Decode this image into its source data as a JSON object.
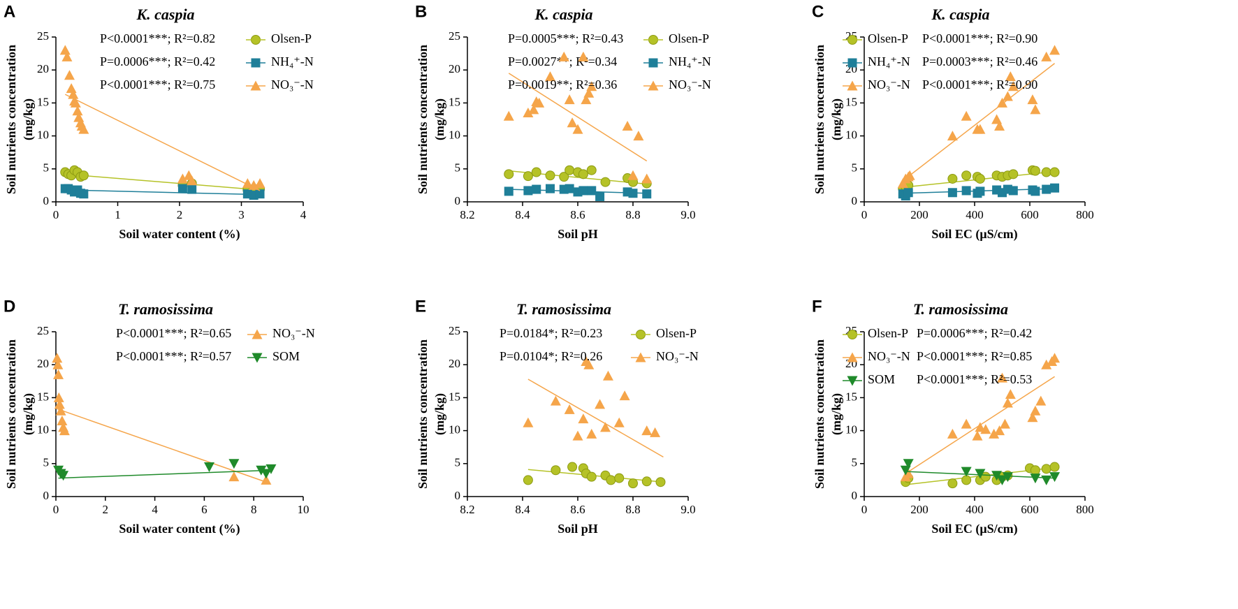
{
  "chart_data": [
    {
      "type": "scatter",
      "panel": "A",
      "title": "K. caspia",
      "xlabel": "Soil water content (%)",
      "ylabel": [
        "Soil nutrients concentration",
        "(mg/kg)"
      ],
      "xlim": [
        0,
        4
      ],
      "xticks": [
        0,
        1,
        2,
        3,
        4
      ],
      "ylim": [
        0,
        25
      ],
      "yticks": [
        0,
        5,
        10,
        15,
        20,
        25
      ],
      "legend": "right",
      "series": [
        {
          "name": "Olsen-P",
          "color": "#b5c227",
          "marker": "circle",
          "stat": "P<0.0001***; R²=0.82",
          "x": [
            0.15,
            0.2,
            0.25,
            0.3,
            0.35,
            0.4,
            0.45,
            2.05,
            2.2,
            3.1,
            3.2,
            3.3
          ],
          "values": [
            4.5,
            4.2,
            4,
            4.8,
            4.5,
            3.8,
            4,
            2.5,
            2.8,
            1.8,
            2,
            1.9
          ],
          "fit_x": [
            0.15,
            3.3
          ],
          "fit_y": [
            4.2,
            1.8
          ]
        },
        {
          "name": "NH₄⁺-N",
          "color": "#1f7f99",
          "marker": "square",
          "stat": "P=0.0006***; R²=0.42",
          "x": [
            0.15,
            0.2,
            0.25,
            0.3,
            0.35,
            0.4,
            0.45,
            2.05,
            2.2,
            3.1,
            3.2,
            3.3
          ],
          "values": [
            2,
            2,
            1.8,
            1.5,
            1.8,
            1.3,
            1.2,
            2,
            1.9,
            1.2,
            1,
            1.2
          ],
          "fit_x": [
            0.15,
            3.3
          ],
          "fit_y": [
            1.8,
            1.1
          ]
        },
        {
          "name": "NO₃⁻-N",
          "color": "#f5a54a",
          "marker": "triangle",
          "stat": "P<0.0001***; R²=0.75",
          "x": [
            0.15,
            0.18,
            0.22,
            0.25,
            0.28,
            0.3,
            0.32,
            0.35,
            0.37,
            0.4,
            0.42,
            0.45,
            2.05,
            2.15,
            2.2,
            3.1,
            3.2,
            3.3
          ],
          "values": [
            23,
            22,
            19.2,
            17.2,
            16.3,
            15.3,
            15,
            13.8,
            12.8,
            12,
            11.5,
            11,
            3.5,
            4,
            3.2,
            2.8,
            2.5,
            2.8
          ],
          "fit_x": [
            0.15,
            3.3
          ],
          "fit_y": [
            16.3,
            1.7
          ]
        }
      ]
    },
    {
      "type": "scatter",
      "panel": "B",
      "title": "K. caspia",
      "xlabel": "Soil pH",
      "ylabel": [
        "Soil nutrients concentration",
        "(mg/kg)"
      ],
      "xlim": [
        8.2,
        9
      ],
      "xticks": [
        8.2,
        8.4,
        8.6,
        8.8,
        {
          "value": 9,
          "label": "9.0"
        }
      ],
      "ylim": [
        0,
        25
      ],
      "yticks": [
        0,
        5,
        10,
        15,
        20,
        25
      ],
      "legend": "right",
      "series": [
        {
          "name": "Olsen-P",
          "color": "#b5c227",
          "marker": "circle",
          "stat": "P=0.0005***; R²=0.43",
          "x": [
            8.35,
            8.42,
            8.45,
            8.5,
            8.55,
            8.57,
            8.6,
            8.62,
            8.65,
            8.7,
            8.78,
            8.8,
            8.85
          ],
          "values": [
            4.2,
            3.9,
            4.5,
            4,
            3.8,
            4.8,
            4.5,
            4.2,
            4.8,
            3,
            3.6,
            3,
            2.8
          ],
          "fit_x": [
            8.35,
            8.85
          ],
          "fit_y": [
            4.7,
            2.7
          ]
        },
        {
          "name": "NH₄⁺-N",
          "color": "#1f7f99",
          "marker": "square",
          "stat": "P=0.0027**; R²=0.34",
          "x": [
            8.35,
            8.42,
            8.45,
            8.5,
            8.55,
            8.57,
            8.6,
            8.62,
            8.65,
            8.68,
            8.78,
            8.8,
            8.85
          ],
          "values": [
            1.6,
            1.7,
            1.9,
            2,
            1.9,
            2,
            1.5,
            1.7,
            1.7,
            0.8,
            1.5,
            1.3,
            1.2
          ],
          "fit_x": [
            8.35,
            8.85
          ],
          "fit_y": [
            1.9,
            1.3
          ]
        },
        {
          "name": "NO₃⁻-N",
          "color": "#f5a54a",
          "marker": "triangle",
          "stat": "P=0.0019**; R²=0.36",
          "x": [
            8.35,
            8.42,
            8.44,
            8.45,
            8.46,
            8.5,
            8.55,
            8.57,
            8.58,
            8.6,
            8.62,
            8.63,
            8.64,
            8.65,
            8.78,
            8.8,
            8.82,
            8.85
          ],
          "values": [
            13,
            13.5,
            14,
            15.2,
            15,
            19,
            22,
            15.5,
            12,
            11,
            22,
            15.5,
            16.5,
            17.5,
            11.5,
            4,
            10,
            3.5
          ],
          "fit_x": [
            8.35,
            8.85
          ],
          "fit_y": [
            19.5,
            6.2
          ]
        }
      ]
    },
    {
      "type": "scatter",
      "panel": "C",
      "title": "K. caspia",
      "xlabel": "Soil EC (μS/cm)",
      "ylabel": [
        "Soil nutrients concentration",
        "(mg/kg)"
      ],
      "xlim": [
        0,
        800
      ],
      "xticks": [
        0,
        200,
        400,
        600,
        800
      ],
      "ylim": [
        0,
        25
      ],
      "yticks": [
        0,
        5,
        10,
        15,
        20,
        25
      ],
      "legend": "left",
      "series": [
        {
          "name": "Olsen-P",
          "color": "#b5c227",
          "marker": "circle",
          "stat": "P<0.0001***; R²=0.90",
          "x": [
            140,
            150,
            160,
            320,
            370,
            410,
            420,
            480,
            500,
            520,
            540,
            610,
            620,
            660,
            690
          ],
          "values": [
            2,
            2.3,
            2.5,
            3.5,
            4,
            3.8,
            3.5,
            4,
            3.8,
            4,
            4.2,
            4.8,
            4.7,
            4.5,
            4.5
          ],
          "fit_x": [
            140,
            690
          ],
          "fit_y": [
            2.2,
            4.6
          ]
        },
        {
          "name": "NH₄⁺-N",
          "color": "#1f7f99",
          "marker": "square",
          "stat": "P=0.0003***; R²=0.46",
          "x": [
            140,
            150,
            160,
            320,
            370,
            410,
            420,
            480,
            500,
            520,
            540,
            610,
            620,
            660,
            690
          ],
          "values": [
            1.2,
            0.9,
            1.4,
            1.4,
            1.7,
            1.3,
            1.6,
            1.8,
            1.4,
            1.9,
            1.7,
            1.8,
            1.6,
            1.9,
            2.1
          ],
          "fit_x": [
            140,
            690
          ],
          "fit_y": [
            1.3,
            2
          ]
        },
        {
          "name": "NO₃⁻-N",
          "color": "#f5a54a",
          "marker": "triangle",
          "stat": "P<0.0001***; R²=0.90",
          "x": [
            140,
            150,
            160,
            165,
            320,
            370,
            410,
            420,
            480,
            490,
            500,
            520,
            530,
            540,
            610,
            620,
            660,
            690
          ],
          "values": [
            2.8,
            3.5,
            3.8,
            4,
            10,
            13,
            11,
            11,
            12.5,
            11.5,
            15,
            16,
            19,
            17.5,
            15.5,
            14,
            22,
            23
          ],
          "fit_x": [
            140,
            690
          ],
          "fit_y": [
            3.2,
            21
          ]
        }
      ]
    },
    {
      "type": "scatter",
      "panel": "D",
      "title": "T. ramosissima",
      "xlabel": "Soil water content (%)",
      "ylabel": [
        "Soil nutrients concentration",
        "(mg/kg)"
      ],
      "xlim": [
        0,
        10
      ],
      "xticks": [
        0,
        2,
        4,
        6,
        8,
        10
      ],
      "ylim": [
        0,
        25
      ],
      "yticks": [
        0,
        5,
        10,
        15,
        20,
        25
      ],
      "legend": "right",
      "series": [
        {
          "name": "NO₃⁻-N",
          "color": "#f5a54a",
          "marker": "triangle",
          "stat": "P<0.0001***; R²=0.65",
          "x": [
            0.05,
            0.08,
            0.1,
            0.12,
            0.15,
            0.2,
            0.25,
            0.3,
            0.35,
            7.2,
            8.5
          ],
          "values": [
            21,
            20,
            18.5,
            15,
            14,
            13,
            11.5,
            10.5,
            10,
            3,
            2.5
          ],
          "fit_x": [
            0.05,
            8.5
          ],
          "fit_y": [
            13.3,
            2.2
          ]
        },
        {
          "name": "SOM",
          "color": "#1f8a2a",
          "marker": "triangle-down",
          "stat": "P<0.0001***; R²=0.57",
          "x": [
            0.1,
            0.2,
            0.3,
            6.2,
            7.2,
            8.3,
            8.5,
            8.7
          ],
          "values": [
            4,
            3.5,
            3.2,
            4.5,
            5,
            4,
            3.5,
            4.2
          ],
          "fit_x": [
            0.1,
            8.7
          ],
          "fit_y": [
            2.8,
            4
          ]
        }
      ]
    },
    {
      "type": "scatter",
      "panel": "E",
      "title": "T. ramosissima",
      "xlabel": "Soil pH",
      "ylabel": [
        "Soil nutrients concentration",
        "(mg/kg)"
      ],
      "xlim": [
        8.2,
        9
      ],
      "xticks": [
        8.2,
        8.4,
        8.6,
        8.8,
        {
          "value": 9,
          "label": "9.0"
        }
      ],
      "ylim": [
        0,
        25
      ],
      "yticks": [
        0,
        5,
        10,
        15,
        20,
        25
      ],
      "legend": "right",
      "series": [
        {
          "name": "Olsen-P",
          "color": "#b5c227",
          "marker": "circle",
          "stat": "P=0.0184*; R²=0.23",
          "x": [
            8.42,
            8.52,
            8.58,
            8.62,
            8.63,
            8.65,
            8.7,
            8.72,
            8.75,
            8.8,
            8.85,
            8.9
          ],
          "values": [
            2.5,
            4,
            4.5,
            4.3,
            3.5,
            3,
            3.2,
            2.5,
            2.8,
            2,
            2.3,
            2.2
          ],
          "fit_x": [
            8.42,
            8.91
          ],
          "fit_y": [
            4.1,
            2.2
          ]
        },
        {
          "name": "NO₃⁻-N",
          "color": "#f5a54a",
          "marker": "triangle",
          "stat": "P=0.0104*; R²=0.26",
          "x": [
            8.42,
            8.52,
            8.57,
            8.6,
            8.62,
            8.63,
            8.64,
            8.65,
            8.68,
            8.7,
            8.71,
            8.75,
            8.77,
            8.85,
            8.88
          ],
          "values": [
            11.2,
            14.5,
            13.2,
            9.2,
            11.8,
            20.5,
            20,
            9.5,
            14,
            10.5,
            18.3,
            11.2,
            15.3,
            10,
            9.7
          ],
          "fit_x": [
            8.42,
            8.91
          ],
          "fit_y": [
            17.8,
            6
          ]
        }
      ]
    },
    {
      "type": "scatter",
      "panel": "F",
      "title": "T. ramosissima",
      "xlabel": "Soil EC (μS/cm)",
      "ylabel": [
        "Soil nutrients concentration",
        "(mg/kg)"
      ],
      "xlim": [
        0,
        800
      ],
      "xticks": [
        0,
        200,
        400,
        600,
        800
      ],
      "ylim": [
        0,
        25
      ],
      "yticks": [
        0,
        5,
        10,
        15,
        20,
        25
      ],
      "legend": "left",
      "series": [
        {
          "name": "Olsen-P",
          "color": "#b5c227",
          "marker": "circle",
          "stat": "P=0.0006***; R²=0.42",
          "x": [
            150,
            160,
            320,
            370,
            420,
            440,
            480,
            500,
            520,
            600,
            620,
            660,
            690
          ],
          "values": [
            2.2,
            2.8,
            2,
            2.5,
            2.5,
            3,
            2.5,
            3,
            3.2,
            4.3,
            4,
            4.2,
            4.5
          ],
          "fit_x": [
            150,
            690
          ],
          "fit_y": [
            1.8,
            4.4
          ]
        },
        {
          "name": "NO₃⁻-N",
          "color": "#f5a54a",
          "marker": "triangle",
          "stat": "P<0.0001***; R²=0.85",
          "x": [
            150,
            160,
            320,
            370,
            410,
            420,
            440,
            470,
            490,
            500,
            510,
            520,
            530,
            610,
            620,
            640,
            660,
            680,
            690
          ],
          "values": [
            3,
            3.5,
            9.5,
            11,
            9.2,
            10.5,
            10.2,
            9.5,
            10,
            18,
            11,
            14.2,
            15.5,
            12,
            13,
            14.5,
            20,
            20.5,
            21
          ],
          "fit_x": [
            150,
            690
          ],
          "fit_y": [
            3.5,
            18.2
          ]
        },
        {
          "name": "SOM",
          "color": "#1f8a2a",
          "marker": "triangle-down",
          "stat": "P<0.0001***; R²=0.53",
          "x": [
            150,
            160,
            370,
            420,
            480,
            500,
            520,
            620,
            660,
            690
          ],
          "values": [
            4,
            5,
            3.8,
            3.5,
            3.2,
            2.5,
            3,
            2.8,
            2.5,
            3
          ],
          "fit_x": [
            150,
            690
          ],
          "fit_y": [
            3.8,
            2.8
          ]
        }
      ]
    }
  ]
}
